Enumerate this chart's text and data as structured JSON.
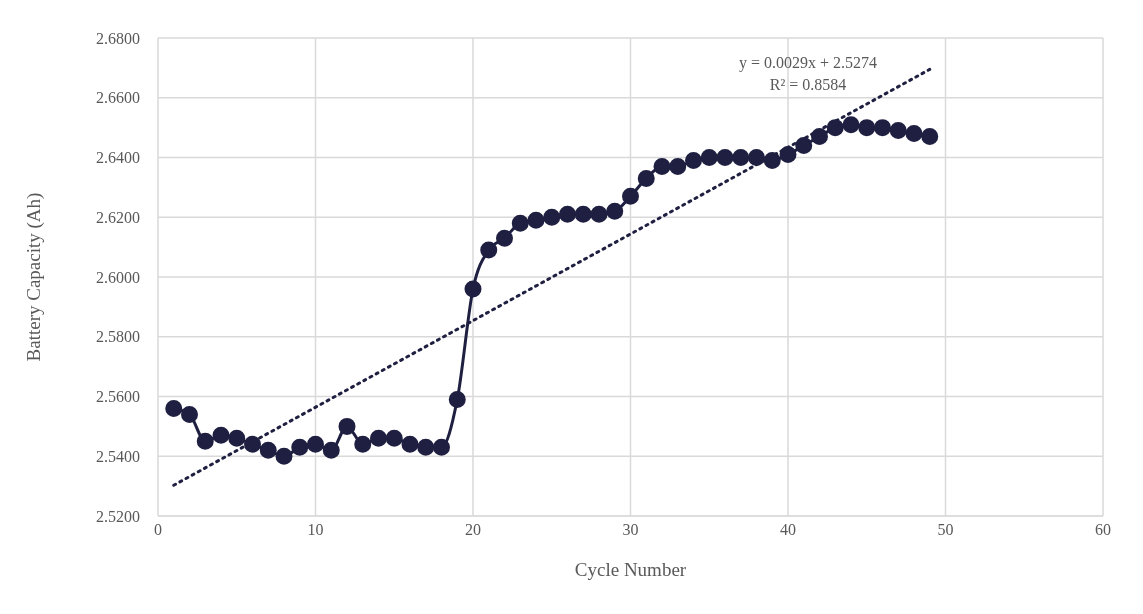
{
  "chart_data": {
    "type": "line",
    "xlabel": "Cycle Number",
    "ylabel": "Battery Capacity (Ah)",
    "x": [
      1,
      2,
      3,
      4,
      5,
      6,
      7,
      8,
      9,
      10,
      11,
      12,
      13,
      14,
      15,
      16,
      17,
      18,
      19,
      20,
      21,
      22,
      23,
      24,
      25,
      26,
      27,
      28,
      29,
      30,
      31,
      32,
      33,
      34,
      35,
      36,
      37,
      38,
      39,
      40,
      41,
      42,
      43,
      44,
      45,
      46,
      47,
      48,
      49
    ],
    "series": [
      {
        "color": "#1f2041",
        "marker": "circle",
        "line_style": "solid",
        "values": [
          2.556,
          2.554,
          2.545,
          2.547,
          2.546,
          2.544,
          2.542,
          2.54,
          2.543,
          2.544,
          2.542,
          2.55,
          2.544,
          2.546,
          2.546,
          2.544,
          2.543,
          2.543,
          2.559,
          2.596,
          2.609,
          2.613,
          2.618,
          2.619,
          2.62,
          2.621,
          2.621,
          2.621,
          2.622,
          2.627,
          2.633,
          2.637,
          2.637,
          2.639,
          2.64,
          2.64,
          2.64,
          2.64,
          2.639,
          2.641,
          2.644,
          2.647,
          2.65,
          2.651,
          2.65,
          2.65,
          2.649,
          2.648,
          2.647
        ]
      },
      {
        "type": "line",
        "color": "#1f2041",
        "marker": "none",
        "line_style": "dotted",
        "x": [
          1,
          49
        ],
        "values": [
          2.5303,
          2.6695
        ]
      }
    ],
    "annotations": [
      "y = 0.0029x + 2.5274\nR² = 0.8584"
    ],
    "xlim": [
      0,
      60
    ],
    "xticks": [
      0,
      10,
      20,
      30,
      40,
      50,
      60
    ],
    "ylim": [
      2.52,
      2.68
    ],
    "yticks": [
      {
        "value": 2.52,
        "label": "2.5200"
      },
      {
        "value": 2.54,
        "label": "2.5400"
      },
      {
        "value": 2.56,
        "label": "2.5600"
      },
      {
        "value": 2.58,
        "label": "2.5800"
      },
      {
        "value": 2.6,
        "label": "2.6000"
      },
      {
        "value": 2.62,
        "label": "2.6200"
      },
      {
        "value": 2.64,
        "label": "2.6400"
      },
      {
        "value": 2.66,
        "label": "2.6600"
      },
      {
        "value": 2.68,
        "label": "2.6800"
      }
    ],
    "grid": true,
    "legend": false
  }
}
